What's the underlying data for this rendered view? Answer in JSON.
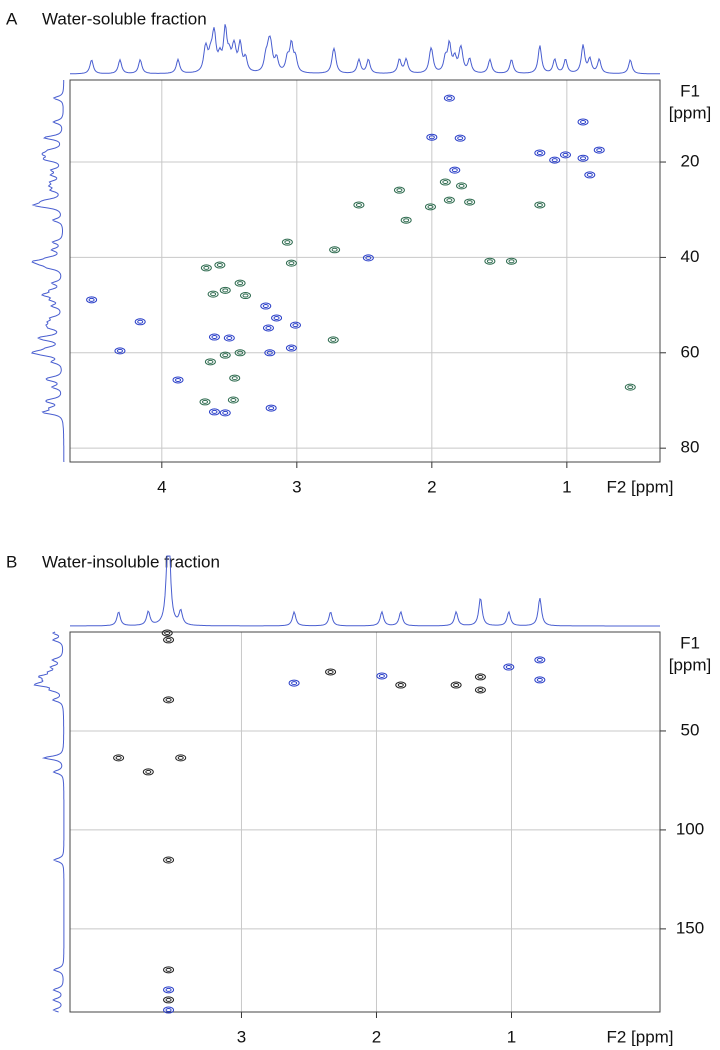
{
  "chart_data": [
    {
      "type": "hsqc",
      "panel_label": "A",
      "title": "Water-soluble fraction",
      "x_label": "F2 [ppm]",
      "y_label": [
        "F1",
        "[ppm]"
      ],
      "xlim": [
        4.68,
        0.31
      ],
      "ylim": [
        2.8,
        82.9
      ],
      "xticks": [
        4,
        3,
        2,
        1
      ],
      "yticks": [
        20,
        40,
        60,
        80
      ],
      "grid": true,
      "series": [
        {
          "color": "#2a3fc8",
          "x": [
            0.88,
            0.88,
            0.83,
            0.76,
            1.01,
            1.2,
            1.09,
            1.83,
            1.79,
            1.87,
            2.0,
            2.47,
            3.15,
            3.23,
            3.01,
            3.21,
            3.04,
            3.5,
            3.61,
            3.61,
            3.53,
            3.19,
            4.31,
            4.52,
            3.88,
            4.16,
            3.2
          ],
          "values": [
            11.6,
            19.2,
            22.7,
            17.5,
            18.5,
            18.1,
            19.6,
            21.7,
            15,
            6.6,
            14.8,
            40.1,
            52.7,
            50.2,
            54.2,
            54.8,
            59,
            56.9,
            56.7,
            72.4,
            72.6,
            71.6,
            59.6,
            48.9,
            65.7,
            53.5,
            60
          ]
        },
        {
          "color": "#2e6b4f",
          "x": [
            3.67,
            3.57,
            3.42,
            3.53,
            3.62,
            3.38,
            2.72,
            3.04,
            3.07,
            2.54,
            2.19,
            2.01,
            1.87,
            1.72,
            1.78,
            1.9,
            2.24,
            1.57,
            1.41,
            1.2,
            3.42,
            3.53,
            3.46,
            3.47,
            3.64,
            2.73,
            3.68,
            0.53
          ],
          "values": [
            42.2,
            41.6,
            45.4,
            46.9,
            47.7,
            48,
            38.4,
            41.2,
            36.8,
            29,
            32.2,
            29.4,
            28,
            28.4,
            25,
            24.2,
            25.9,
            40.8,
            40.8,
            29,
            60,
            60.5,
            65.3,
            69.9,
            61.9,
            57.3,
            70.3,
            67.2
          ]
        }
      ]
    },
    {
      "type": "hsqc",
      "panel_label": "B",
      "title": "Water-insoluble fraction",
      "x_label": "F2 [ppm]",
      "y_label": [
        "F1",
        "[ppm]"
      ],
      "xlim": [
        4.27,
        -0.1
      ],
      "ylim": [
        0,
        192
      ],
      "xticks": [
        3,
        2,
        1
      ],
      "yticks": [
        50,
        100,
        150
      ],
      "grid": true,
      "series": [
        {
          "color": "#222222",
          "x": [
            3.55,
            2.34,
            1.82,
            1.41,
            1.23,
            1.23,
            3.91,
            3.69,
            3.54,
            3.54,
            3.54,
            3.54,
            3.54,
            3.45
          ],
          "values": [
            0.5,
            20.2,
            26.8,
            26.8,
            29.3,
            22.7,
            63.6,
            70.7,
            170.7,
            185.9,
            4,
            34.3,
            115.2,
            63.6
          ]
        },
        {
          "color": "#2a3fc8",
          "x": [
            2.61,
            1.96,
            0.79,
            1.02,
            0.79,
            3.54,
            3.54
          ],
          "values": [
            25.8,
            22.2,
            14.1,
            17.7,
            24.2,
            191,
            180.8
          ]
        }
      ]
    }
  ]
}
